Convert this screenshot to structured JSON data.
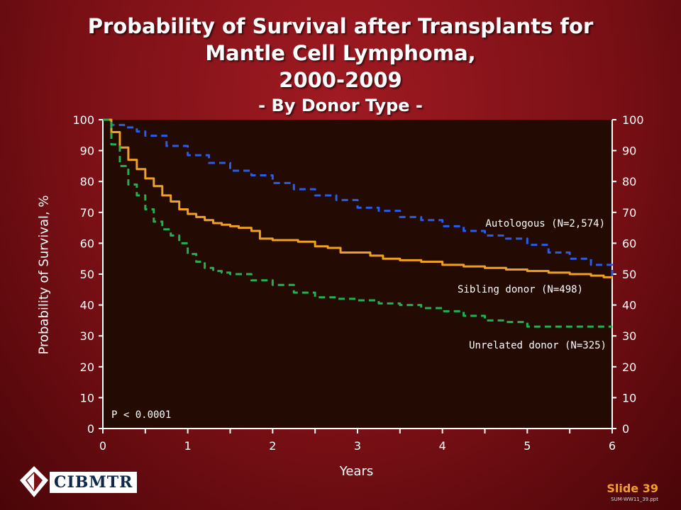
{
  "title": {
    "line1": "Probability of Survival after Transplants for",
    "line2": "Mantle Cell Lymphoma,",
    "line3": "2000-2009",
    "line4": "- By Donor Type -"
  },
  "footer": {
    "logo_text": "CIBMTR",
    "slide_label": "Slide 39",
    "slide_ref": "SUM-WW11_39.ppt"
  },
  "colors": {
    "autologous": "#2a5ce8",
    "sibling": "#f0a020",
    "unrelated": "#22b14c",
    "plot_bg": "#230a02",
    "text": "#ffffff"
  },
  "chart_data": {
    "type": "line",
    "title": "Probability of Survival after Transplants for Mantle Cell Lymphoma, 2000-2009 - By Donor Type -",
    "xlabel": "Years",
    "ylabel": "Probability of Survival, %",
    "xlim": [
      0,
      6
    ],
    "ylim": [
      0,
      100
    ],
    "xticks": [
      0,
      1,
      2,
      3,
      4,
      5,
      6
    ],
    "yticks": [
      0,
      10,
      20,
      30,
      40,
      50,
      60,
      70,
      80,
      90,
      100
    ],
    "grid": false,
    "annotation": "P < 0.0001",
    "series": [
      {
        "name": "Autologous (N=2,574)",
        "style": "dashed",
        "color": "#2a5ce8",
        "x": [
          0,
          0.1,
          0.25,
          0.4,
          0.5,
          0.75,
          1.0,
          1.25,
          1.5,
          1.75,
          2.0,
          2.25,
          2.5,
          2.75,
          3.0,
          3.25,
          3.5,
          3.75,
          4.0,
          4.25,
          4.5,
          4.75,
          5.0,
          5.25,
          5.5,
          5.75,
          6.0
        ],
        "y": [
          100,
          98.3,
          97.5,
          96.2,
          94.8,
          91.5,
          88.5,
          86,
          83.5,
          82,
          79.5,
          77.5,
          75.5,
          74,
          71.5,
          70.5,
          68.5,
          67.5,
          65.5,
          64,
          62.5,
          61.5,
          59.5,
          57,
          55,
          53,
          49
        ]
      },
      {
        "name": "Sibling donor (N=498)",
        "style": "solid",
        "color": "#f0a020",
        "x": [
          0,
          0.1,
          0.2,
          0.3,
          0.4,
          0.5,
          0.6,
          0.7,
          0.8,
          0.9,
          1.0,
          1.1,
          1.2,
          1.3,
          1.4,
          1.5,
          1.6,
          1.75,
          1.85,
          2.0,
          2.15,
          2.3,
          2.5,
          2.65,
          2.8,
          3.0,
          3.15,
          3.3,
          3.5,
          3.75,
          4.0,
          4.25,
          4.5,
          4.75,
          5.0,
          5.25,
          5.5,
          5.75,
          5.9,
          6.0
        ],
        "y": [
          100,
          96,
          91,
          87,
          84,
          81,
          78.5,
          75.5,
          73.5,
          71,
          69.5,
          68.5,
          67.5,
          66.5,
          66,
          65.5,
          65,
          64,
          61.5,
          61,
          61,
          60.5,
          59,
          58.5,
          57,
          57,
          56,
          55,
          54.5,
          54,
          53,
          52.5,
          52,
          51.5,
          51,
          50.5,
          50,
          49.5,
          49,
          49
        ]
      },
      {
        "name": "Unrelated donor (N=325)",
        "style": "dashed",
        "color": "#22b14c",
        "x": [
          0,
          0.1,
          0.2,
          0.3,
          0.4,
          0.5,
          0.6,
          0.7,
          0.8,
          0.9,
          1.0,
          1.1,
          1.2,
          1.3,
          1.4,
          1.5,
          1.75,
          2.0,
          2.25,
          2.5,
          2.75,
          3.0,
          3.25,
          3.5,
          3.75,
          4.0,
          4.25,
          4.5,
          4.75,
          5.0,
          5.25,
          5.5,
          5.75,
          6.0
        ],
        "y": [
          100,
          92,
          85,
          79,
          75.5,
          71,
          67,
          64.5,
          62.5,
          60,
          56.5,
          54,
          52,
          51,
          50.5,
          50,
          48,
          46.5,
          44,
          42.5,
          42,
          41.5,
          40.5,
          40,
          39,
          38,
          36.5,
          35,
          34.5,
          33,
          33,
          33,
          33,
          33
        ]
      }
    ]
  }
}
